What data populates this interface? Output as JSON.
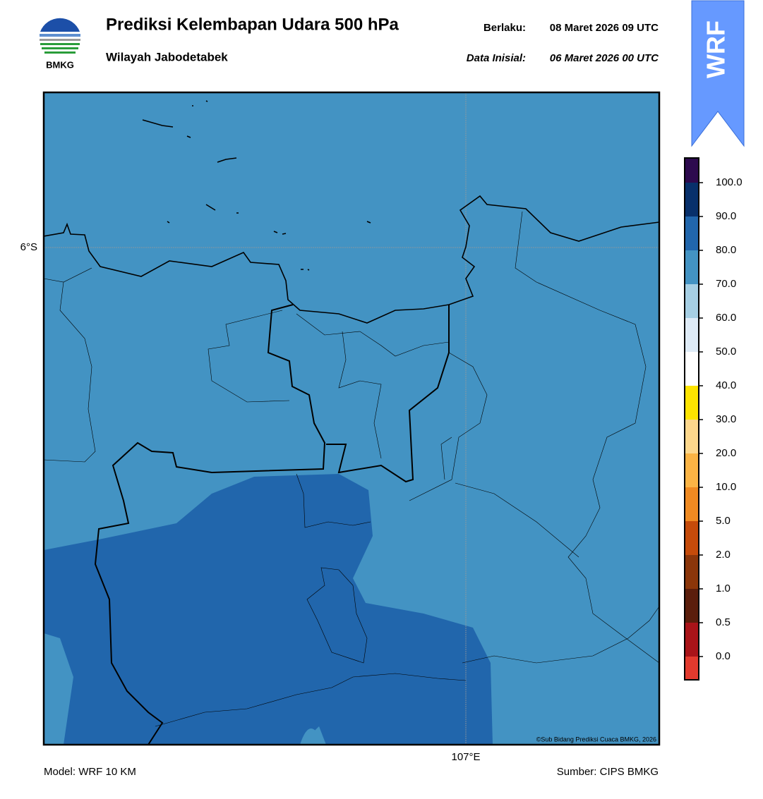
{
  "header": {
    "title": "Prediksi Kelembapan Udara 500 hPa",
    "subtitle": "Wilayah Jabodetabek",
    "valid_label": "Berlaku:",
    "valid_time": "08 Maret 2026 09 UTC",
    "init_label": "Data Inisial:",
    "init_time": "06 Maret 2026 00 UTC",
    "logo_text": "BMKG",
    "badge": "WRF"
  },
  "map": {
    "lat_label": "6°S",
    "lon_label": "107°E",
    "copyright": "©Sub Bidang Prediksi Cuaca BMKG, 2026"
  },
  "colorbar": {
    "colors": [
      "#e23a2e",
      "#a91419",
      "#5b1e0c",
      "#8b360a",
      "#c54b0a",
      "#ef8a22",
      "#fbb445",
      "#fdd78c",
      "#fde400",
      "#ffffff",
      "#deebf7",
      "#a6cfe4",
      "#4393c3",
      "#2166ac",
      "#08306b",
      "#2d0a4e"
    ],
    "ticks": [
      {
        "value": 0,
        "label": "0.0"
      },
      {
        "value": 0.5,
        "label": "0.5"
      },
      {
        "value": 1,
        "label": "1.0"
      },
      {
        "value": 2,
        "label": "2.0"
      },
      {
        "value": 5,
        "label": "5.0"
      },
      {
        "value": 10,
        "label": "10.0"
      },
      {
        "value": 20,
        "label": "20.0"
      },
      {
        "value": 30,
        "label": "30.0"
      },
      {
        "value": 40,
        "label": "40.0"
      },
      {
        "value": 50,
        "label": "50.0"
      },
      {
        "value": 60,
        "label": "60.0"
      },
      {
        "value": 70,
        "label": "70.0"
      },
      {
        "value": 80,
        "label": "80.0"
      },
      {
        "value": 90,
        "label": "90.0"
      },
      {
        "value": 100,
        "label": "100.0"
      }
    ]
  },
  "footer": {
    "model": "Model: WRF 10 KM",
    "source": "Sumber: CIPS BMKG"
  }
}
